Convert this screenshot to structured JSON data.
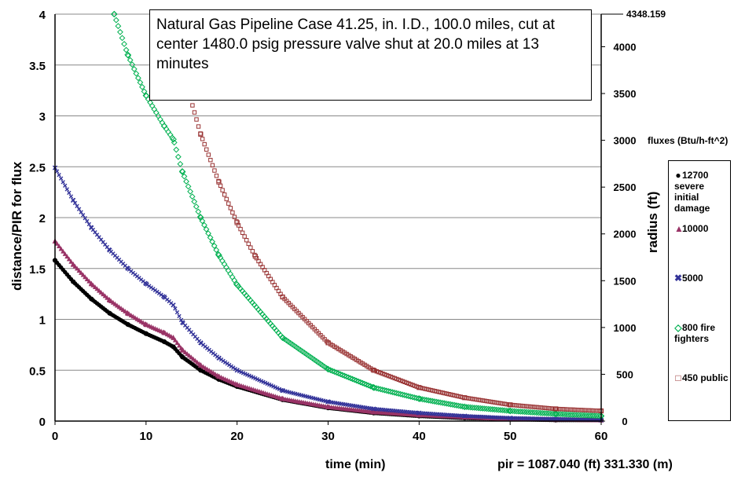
{
  "title": "Natural Gas Pipeline  Case 41.25, in. I.D., 100.0 miles, cut at center 1480.0 psig pressure valve shut at 20.0 miles at 13 minutes",
  "xlabel": "time (min)",
  "ylabel_left": "distance/PIR for flux",
  "ylabel_right": "radius (ft)",
  "pir_text": "pir = 1087.040 (ft) 331.330 (m)",
  "right_axis_max_label": "4348.159",
  "legend": {
    "title": "fluxes (Btu/h-ft^2)",
    "items": [
      {
        "marker": "●",
        "label": "12700 severe initial damage",
        "color": "#000000"
      },
      {
        "marker": "▲",
        "label": "10000",
        "color": "#993366"
      },
      {
        "marker": "✖",
        "label": "5000",
        "color": "#333399"
      },
      {
        "marker": "◇",
        "label": "800 fire fighters",
        "color": "#00b050"
      },
      {
        "marker": "□",
        "label": "450 public",
        "color": "#993333"
      }
    ]
  },
  "chart_data": {
    "type": "scatter",
    "xlim": [
      0,
      60
    ],
    "ylim_left": [
      0,
      4
    ],
    "ylim_right": [
      0,
      4348.159
    ],
    "x_ticks": [
      0,
      10,
      20,
      30,
      40,
      50,
      60
    ],
    "y_left_ticks": [
      "0",
      "0.5",
      "1",
      "1.5",
      "2",
      "2.5",
      "3",
      "3.5",
      "4"
    ],
    "y_right_ticks": [
      "0",
      "500",
      "1000",
      "1500",
      "2000",
      "2500",
      "3000",
      "3500",
      "4000"
    ],
    "grid": "horizontal",
    "legend_position": "right",
    "series": [
      {
        "name": "12700 severe initial damage",
        "color": "#000000",
        "marker": "circle",
        "x": [
          0,
          2,
          4,
          6,
          8,
          10,
          12,
          13,
          14,
          16,
          18,
          20,
          25,
          30,
          35,
          40,
          45,
          50,
          55,
          60
        ],
        "y": [
          1.58,
          1.37,
          1.2,
          1.06,
          0.95,
          0.86,
          0.78,
          0.73,
          0.63,
          0.5,
          0.41,
          0.34,
          0.21,
          0.13,
          0.08,
          0.05,
          0.03,
          0.02,
          0.01,
          0.01
        ]
      },
      {
        "name": "10000",
        "color": "#993366",
        "marker": "triangle",
        "x": [
          0,
          2,
          4,
          6,
          8,
          10,
          12,
          13,
          14,
          16,
          18,
          20,
          25,
          30,
          35,
          40,
          45,
          50,
          55,
          60
        ],
        "y": [
          1.77,
          1.54,
          1.35,
          1.19,
          1.06,
          0.95,
          0.87,
          0.82,
          0.7,
          0.55,
          0.44,
          0.36,
          0.22,
          0.14,
          0.09,
          0.06,
          0.04,
          0.02,
          0.015,
          0.01
        ]
      },
      {
        "name": "5000",
        "color": "#333399",
        "marker": "x",
        "x": [
          0,
          2,
          4,
          6,
          8,
          10,
          12,
          13,
          14,
          16,
          18,
          20,
          25,
          30,
          35,
          40,
          45,
          50,
          55,
          60
        ],
        "y": [
          2.49,
          2.17,
          1.9,
          1.68,
          1.5,
          1.35,
          1.22,
          1.14,
          0.97,
          0.77,
          0.62,
          0.5,
          0.3,
          0.19,
          0.12,
          0.08,
          0.05,
          0.03,
          0.02,
          0.01
        ]
      },
      {
        "name": "800 fire fighters",
        "color": "#00b050",
        "marker": "diamond",
        "x": [
          6.5,
          8,
          10,
          12,
          13,
          14,
          16,
          18,
          20,
          25,
          30,
          35,
          40,
          45,
          50,
          55,
          60
        ],
        "y": [
          4.0,
          3.6,
          3.2,
          2.9,
          2.77,
          2.45,
          2.0,
          1.63,
          1.34,
          0.82,
          0.51,
          0.33,
          0.22,
          0.14,
          0.1,
          0.07,
          0.05
        ]
      },
      {
        "name": "450 public",
        "color": "#993333",
        "marker": "square",
        "x": [
          14,
          16,
          18,
          20,
          22,
          25,
          30,
          35,
          40,
          45,
          50,
          55,
          60
        ],
        "y": [
          3.45,
          2.82,
          2.35,
          1.95,
          1.62,
          1.22,
          0.77,
          0.5,
          0.33,
          0.23,
          0.16,
          0.12,
          0.1
        ]
      }
    ]
  }
}
